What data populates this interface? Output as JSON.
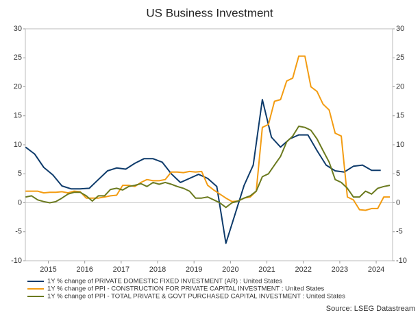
{
  "chart_data": {
    "type": "line",
    "title": "US Business Investment",
    "source": "Source: LSEG Datastream",
    "xlim": [
      2014.37,
      2024.45
    ],
    "xticks": [
      {
        "value": 2015,
        "label": "2015"
      },
      {
        "value": 2016,
        "label": "2016"
      },
      {
        "value": 2017,
        "label": "2017"
      },
      {
        "value": 2018,
        "label": "2018"
      },
      {
        "value": 2019,
        "label": "2019"
      },
      {
        "value": 2020,
        "label": "2020"
      },
      {
        "value": 2021,
        "label": "2021"
      },
      {
        "value": 2022,
        "label": "2022"
      },
      {
        "value": 2023,
        "label": "2023"
      },
      {
        "value": 2024,
        "label": "2024"
      }
    ],
    "ylim": [
      -10,
      30
    ],
    "yticks": [
      -10,
      -5,
      0,
      5,
      10,
      15,
      20,
      25,
      30
    ],
    "y2lim": [
      -10,
      30
    ],
    "y2ticks": [
      -10,
      -5,
      0,
      5,
      10,
      15,
      20,
      25,
      30
    ],
    "grid": false,
    "legend": "bottom",
    "series": [
      {
        "name": "1Y % change of PRIVATE DOMESTIC FIXED INVESTMENT (AR) : United States",
        "color": "#0e3b6b",
        "x": [
          2014.375,
          2014.625,
          2014.875,
          2015.125,
          2015.375,
          2015.625,
          2015.875,
          2016.125,
          2016.375,
          2016.625,
          2016.875,
          2017.125,
          2017.375,
          2017.625,
          2017.875,
          2018.125,
          2018.375,
          2018.625,
          2018.875,
          2019.125,
          2019.375,
          2019.625,
          2019.875,
          2020.125,
          2020.375,
          2020.625,
          2020.875,
          2021.125,
          2021.375,
          2021.625,
          2021.875,
          2022.125,
          2022.375,
          2022.625,
          2022.875,
          2023.125,
          2023.375,
          2023.625,
          2023.875,
          2024.125
        ],
        "values": [
          9.6,
          8.4,
          6.1,
          4.8,
          2.9,
          2.4,
          2.4,
          2.5,
          4.0,
          5.5,
          6.0,
          5.8,
          6.8,
          7.6,
          7.6,
          7.0,
          5.0,
          3.5,
          4.2,
          4.9,
          4.2,
          2.8,
          -7.0,
          -2.0,
          3.0,
          6.5,
          17.8,
          11.3,
          9.6,
          11.0,
          11.7,
          11.7,
          9.0,
          6.5,
          5.5,
          5.3,
          6.3,
          6.5,
          5.6,
          5.6
        ]
      },
      {
        "name": "1Y % change of PPI - CONSTRUCTION FOR PRIVATE CAPITAL INVESTMENT : United States",
        "color": "#f39c12",
        "x": [
          2014.375,
          2014.542,
          2014.708,
          2014.875,
          2015.042,
          2015.208,
          2015.375,
          2015.542,
          2015.708,
          2015.875,
          2016.042,
          2016.208,
          2016.375,
          2016.542,
          2016.708,
          2016.875,
          2017.042,
          2017.208,
          2017.375,
          2017.542,
          2017.708,
          2017.875,
          2018.042,
          2018.208,
          2018.375,
          2018.542,
          2018.708,
          2018.875,
          2019.042,
          2019.208,
          2019.375,
          2019.542,
          2019.708,
          2019.875,
          2020.042,
          2020.208,
          2020.375,
          2020.542,
          2020.708,
          2020.875,
          2021.042,
          2021.208,
          2021.375,
          2021.542,
          2021.708,
          2021.875,
          2022.042,
          2022.208,
          2022.375,
          2022.542,
          2022.708,
          2022.875,
          2023.042,
          2023.208,
          2023.375,
          2023.542,
          2023.708,
          2023.875,
          2024.042,
          2024.208,
          2024.375
        ],
        "values": [
          2.0,
          2.0,
          2.0,
          1.7,
          1.8,
          1.8,
          1.9,
          1.7,
          2.0,
          1.9,
          0.8,
          0.8,
          0.8,
          1.0,
          1.2,
          1.3,
          3.0,
          3.0,
          2.8,
          3.5,
          4.0,
          3.8,
          3.8,
          4.0,
          5.3,
          5.3,
          5.2,
          5.4,
          5.3,
          5.4,
          3.0,
          2.2,
          1.5,
          0.8,
          0.2,
          0.3,
          0.8,
          1.0,
          2.0,
          13.0,
          13.5,
          17.5,
          17.8,
          21.0,
          21.5,
          25.3,
          25.3,
          20.0,
          19.2,
          17.0,
          16.0,
          12.0,
          11.5,
          1.0,
          0.5,
          -1.2,
          -1.3,
          -1.0,
          -1.0,
          1.0,
          1.0
        ]
      },
      {
        "name": "1Y % change of PPI - TOTAL PRIVATE & GOVT PURCHASED CAPITAL INVESTMENT : United States",
        "color": "#6b7a1f",
        "x": [
          2014.375,
          2014.542,
          2014.708,
          2014.875,
          2015.042,
          2015.208,
          2015.375,
          2015.542,
          2015.708,
          2015.875,
          2016.042,
          2016.208,
          2016.375,
          2016.542,
          2016.708,
          2016.875,
          2017.042,
          2017.208,
          2017.375,
          2017.542,
          2017.708,
          2017.875,
          2018.042,
          2018.208,
          2018.375,
          2018.542,
          2018.708,
          2018.875,
          2019.042,
          2019.208,
          2019.375,
          2019.542,
          2019.708,
          2019.875,
          2020.042,
          2020.208,
          2020.375,
          2020.542,
          2020.708,
          2020.875,
          2021.042,
          2021.208,
          2021.375,
          2021.542,
          2021.708,
          2021.875,
          2022.042,
          2022.208,
          2022.375,
          2022.542,
          2022.708,
          2022.875,
          2023.042,
          2023.208,
          2023.375,
          2023.542,
          2023.708,
          2023.875,
          2024.042,
          2024.208,
          2024.375
        ],
        "values": [
          1.0,
          1.2,
          0.5,
          0.2,
          0.0,
          0.2,
          0.8,
          1.5,
          1.8,
          1.8,
          1.2,
          0.3,
          1.2,
          1.2,
          2.3,
          2.5,
          2.2,
          2.8,
          3.0,
          3.3,
          2.8,
          3.5,
          3.2,
          3.5,
          3.2,
          2.8,
          2.5,
          2.0,
          0.8,
          0.8,
          1.0,
          0.5,
          0.0,
          -0.8,
          0.0,
          0.3,
          0.8,
          1.2,
          2.0,
          4.5,
          5.0,
          6.5,
          8.0,
          10.5,
          11.5,
          13.2,
          13.0,
          12.5,
          11.0,
          9.0,
          7.0,
          4.0,
          3.5,
          2.5,
          1.0,
          1.0,
          2.0,
          1.5,
          2.5,
          2.8,
          3.0
        ]
      }
    ]
  }
}
